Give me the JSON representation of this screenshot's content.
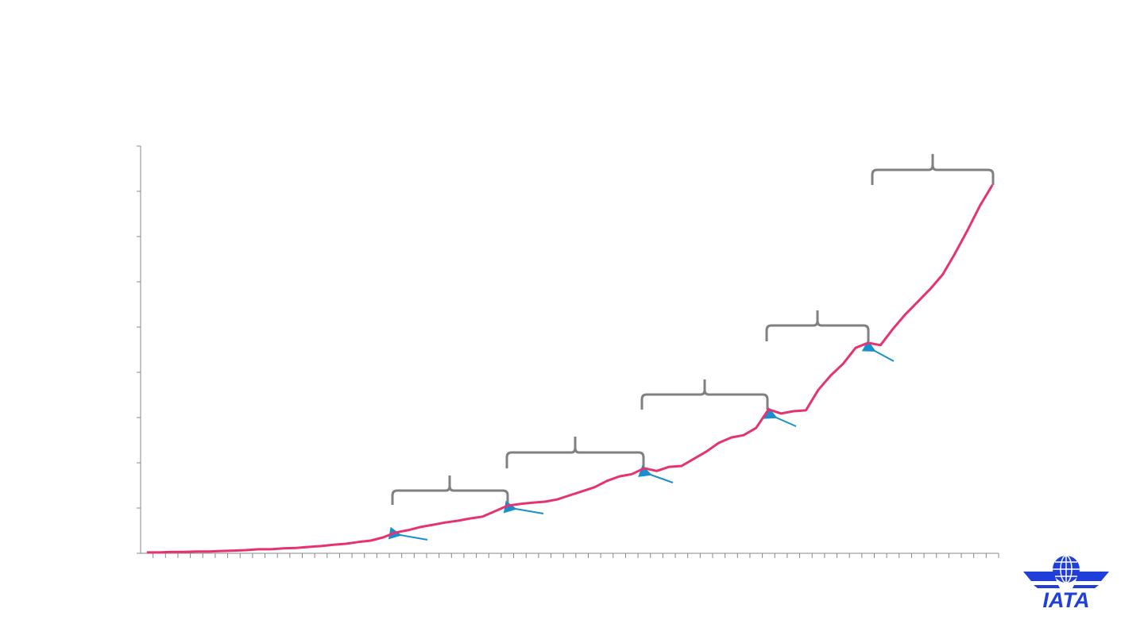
{
  "chart_data": {
    "type": "line",
    "categories": [
      null,
      null,
      null,
      null,
      null,
      null,
      null,
      null,
      null,
      null,
      null,
      null,
      null,
      null,
      null,
      null,
      null,
      null,
      null,
      null,
      null,
      null,
      null,
      null,
      null,
      null,
      null,
      null,
      null,
      null,
      null,
      null,
      null,
      null,
      null,
      null,
      null,
      null,
      null,
      null,
      null,
      null,
      null,
      null,
      null,
      null,
      null,
      null,
      null,
      null,
      null,
      null,
      null,
      null,
      null,
      null,
      null,
      null,
      null,
      null,
      null,
      null,
      null,
      null,
      null,
      null,
      null,
      null,
      null
    ],
    "values": [
      0.02,
      0.02,
      0.03,
      0.03,
      0.04,
      0.04,
      0.05,
      0.06,
      0.07,
      0.09,
      0.09,
      0.11,
      0.12,
      0.14,
      0.16,
      0.19,
      0.21,
      0.25,
      0.28,
      0.35,
      0.46,
      0.51,
      0.58,
      0.63,
      0.68,
      0.72,
      0.77,
      0.81,
      0.93,
      1.05,
      1.09,
      1.12,
      1.14,
      1.19,
      1.28,
      1.37,
      1.46,
      1.6,
      1.7,
      1.75,
      1.88,
      1.82,
      1.91,
      1.93,
      2.09,
      2.25,
      2.44,
      2.56,
      2.61,
      2.77,
      3.18,
      3.09,
      3.14,
      3.16,
      3.61,
      3.93,
      4.19,
      4.54,
      4.65,
      4.6,
      4.96,
      5.28,
      5.56,
      5.84,
      6.16,
      6.63,
      7.14,
      7.68,
      8.14
    ],
    "color": "#e6336e",
    "ylim": [
      0,
      9
    ],
    "yticks": [
      0,
      1,
      2,
      3,
      4,
      5,
      6,
      7,
      8,
      9
    ]
  },
  "logo": "IATA"
}
